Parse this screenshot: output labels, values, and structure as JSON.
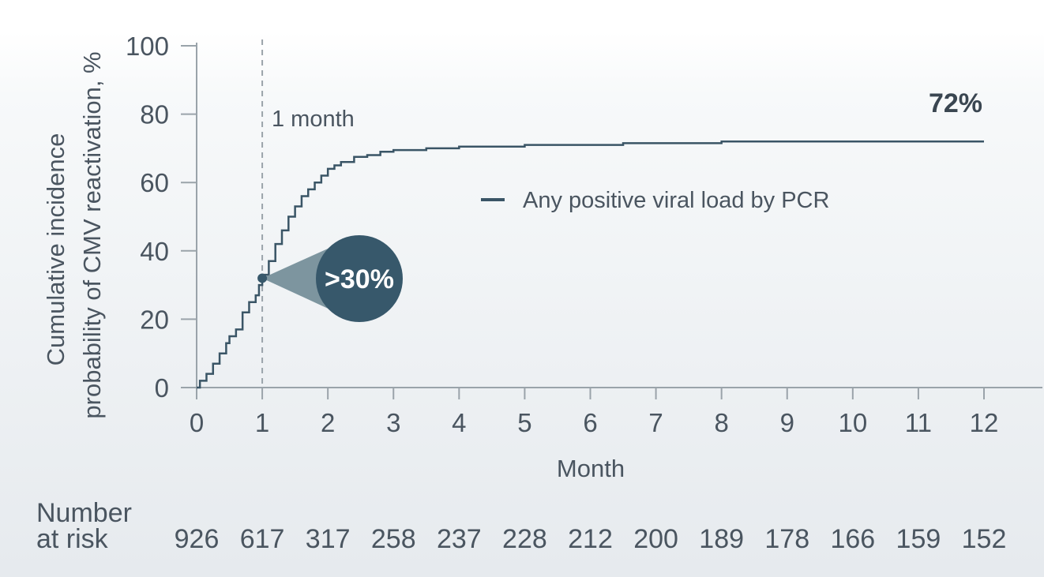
{
  "chart_data": {
    "type": "line",
    "ylabel_line1": "Cumulative incidence",
    "ylabel_line2": "probability of CMV reactivation, %",
    "xlabel": "Month",
    "xlim": [
      0,
      12
    ],
    "ylim": [
      0,
      100
    ],
    "x_ticks": [
      "0",
      "1",
      "2",
      "3",
      "4",
      "5",
      "6",
      "7",
      "8",
      "9",
      "10",
      "11",
      "12"
    ],
    "y_ticks": [
      "0",
      "20",
      "40",
      "60",
      "80",
      "100"
    ],
    "series": [
      {
        "name": "Any positive viral load by PCR",
        "color": "#3a5566",
        "x": [
          0,
          0.05,
          0.15,
          0.25,
          0.35,
          0.45,
          0.5,
          0.6,
          0.7,
          0.8,
          0.9,
          0.95,
          1.0,
          1.1,
          1.2,
          1.3,
          1.4,
          1.5,
          1.6,
          1.7,
          1.8,
          1.9,
          2.0,
          2.1,
          2.2,
          2.4,
          2.6,
          2.8,
          3.0,
          3.5,
          4.0,
          5.0,
          6.0,
          6.5,
          7.5,
          8.0,
          9.0,
          10.0,
          11.0,
          11.5,
          12.0
        ],
        "y": [
          0,
          2,
          4,
          7,
          10,
          13,
          15,
          17,
          22,
          25,
          27,
          30,
          33,
          37,
          42,
          46,
          50,
          53,
          56,
          58,
          60,
          62,
          64,
          65,
          66,
          67.5,
          68,
          69,
          69.5,
          70,
          70.5,
          71,
          71,
          71.5,
          71.5,
          72,
          72,
          72,
          72,
          72,
          72
        ]
      }
    ],
    "reference_line": {
      "x": 1,
      "label": "1 month"
    },
    "callout": {
      "x": 1,
      "y": 32,
      "label": ">30%"
    },
    "end_label": "72%",
    "legend": "right-middle",
    "grid": false,
    "risk_table": {
      "title_line1": "Number",
      "title_line2": "at risk",
      "values": [
        "926",
        "617",
        "317",
        "258",
        "237",
        "228",
        "212",
        "200",
        "189",
        "178",
        "166",
        "159",
        "152"
      ]
    },
    "colors": {
      "line": "#3a5566",
      "callout_circle": "#37586b",
      "callout_cone": "#7d959f",
      "axis": "#9aa3aa",
      "text": "#4a5560"
    }
  }
}
